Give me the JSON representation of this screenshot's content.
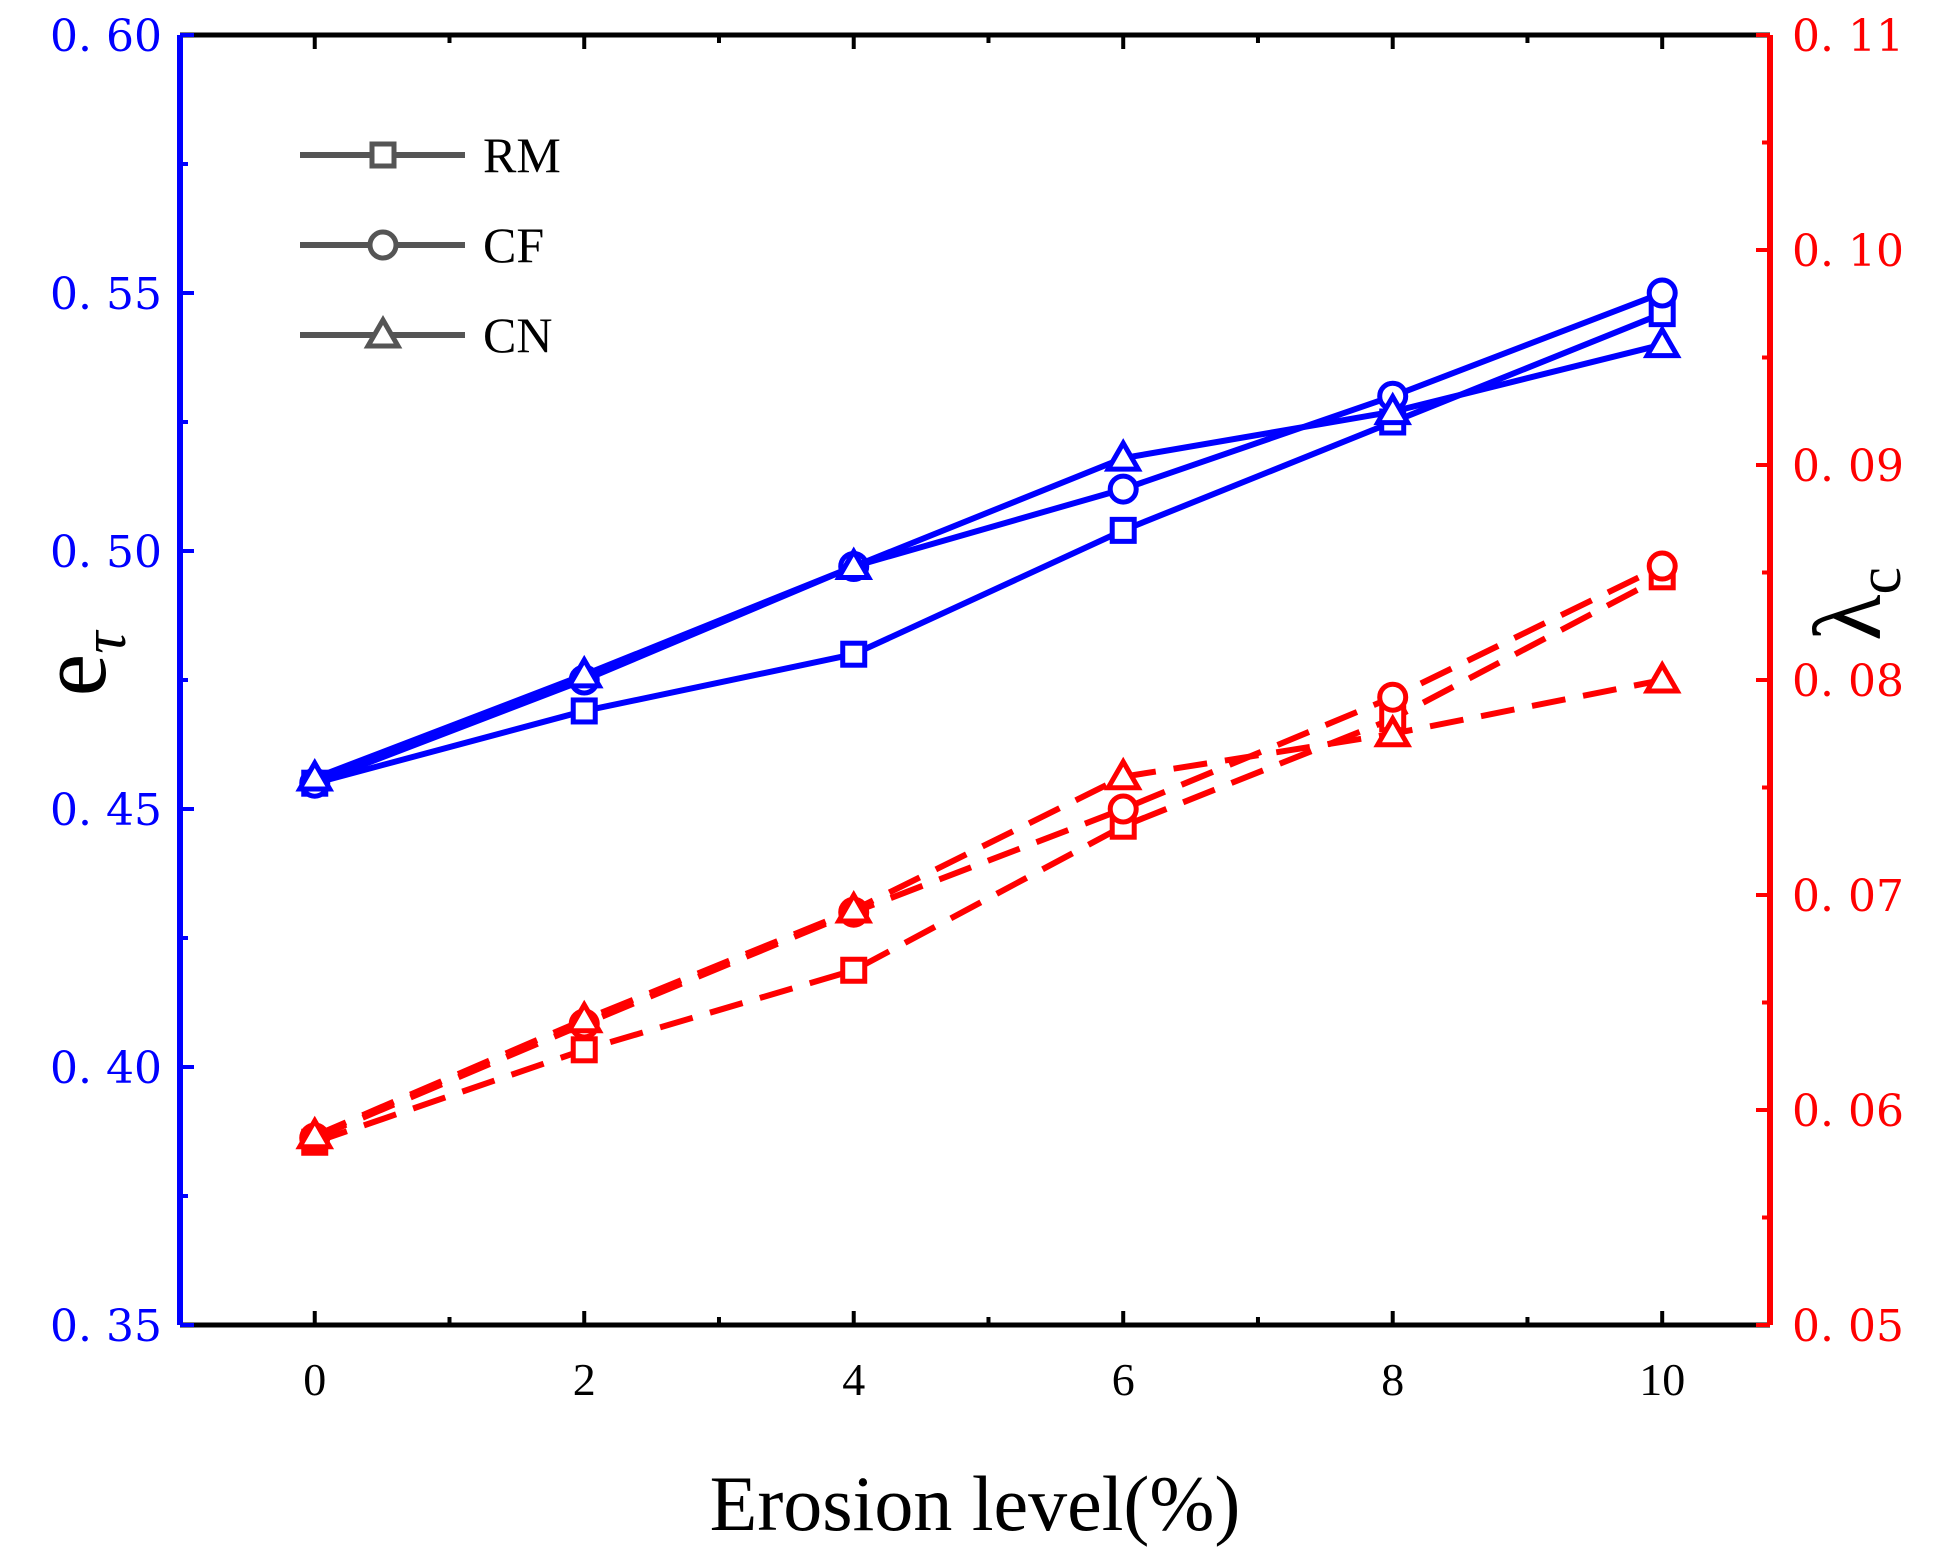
{
  "chart_data": {
    "type": "line",
    "xlabel": "Erosion level(%)",
    "ylabel_left": {
      "main": "e",
      "sub": "τ"
    },
    "ylabel_right": {
      "main": "λ",
      "sub": "c"
    },
    "x": [
      0,
      2,
      4,
      6,
      8,
      10
    ],
    "x_ticks": [
      "0",
      "2",
      "4",
      "6",
      "8",
      "10"
    ],
    "xlim": [
      -1,
      10.8
    ],
    "ylim_left": [
      0.35,
      0.6
    ],
    "ylim_right": [
      0.05,
      0.11
    ],
    "y_left_ticks": [
      0.35,
      0.4,
      0.45,
      0.5,
      0.55,
      0.6
    ],
    "y_left_tick_labels": [
      "0. 35",
      "0. 40",
      "0. 45",
      "0. 50",
      "0. 55",
      "0. 60"
    ],
    "y_right_ticks": [
      0.05,
      0.06,
      0.07,
      0.08,
      0.09,
      0.1,
      0.11
    ],
    "y_right_tick_labels": [
      "0. 05",
      "0. 06",
      "0. 07",
      "0. 08",
      "0. 09",
      "0. 10",
      "0. 11"
    ],
    "colors": {
      "left_axis": "#0000ff",
      "right_axis": "#ff0000",
      "legend": "#555555",
      "frame": "#000000"
    },
    "legend": [
      {
        "label": "RM",
        "marker": "square"
      },
      {
        "label": "CF",
        "marker": "circle"
      },
      {
        "label": "CN",
        "marker": "triangle"
      }
    ],
    "legend_position": "top-left",
    "series": [
      {
        "name": "RM",
        "axis": "left",
        "marker": "square",
        "style": "solid",
        "values": [
          0.455,
          0.469,
          0.48,
          0.504,
          0.525,
          0.546
        ]
      },
      {
        "name": "CF",
        "axis": "left",
        "marker": "circle",
        "style": "solid",
        "values": [
          0.455,
          0.475,
          0.497,
          0.512,
          0.53,
          0.55
        ]
      },
      {
        "name": "CN",
        "axis": "left",
        "marker": "triangle",
        "style": "solid",
        "values": [
          0.456,
          0.476,
          0.497,
          0.518,
          0.527,
          0.54
        ]
      },
      {
        "name": "RM",
        "axis": "right",
        "marker": "square",
        "style": "dashed",
        "values": [
          0.0585,
          0.0628,
          0.0665,
          0.0732,
          0.0782,
          0.0848
        ]
      },
      {
        "name": "CF",
        "axis": "right",
        "marker": "circle",
        "style": "dashed",
        "values": [
          0.0587,
          0.064,
          0.0692,
          0.074,
          0.0792,
          0.0853
        ]
      },
      {
        "name": "CN",
        "axis": "right",
        "marker": "triangle",
        "style": "dashed",
        "values": [
          0.0588,
          0.0642,
          0.0693,
          0.0755,
          0.0775,
          0.08
        ]
      }
    ]
  }
}
